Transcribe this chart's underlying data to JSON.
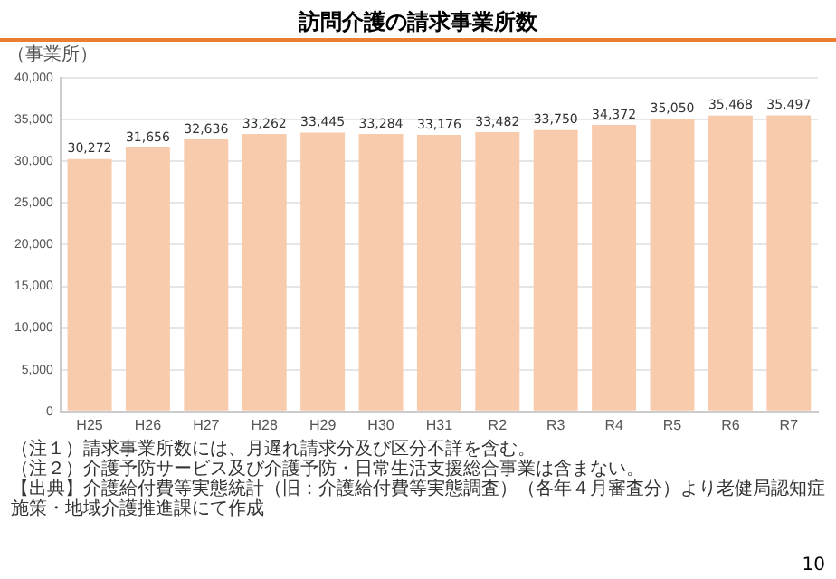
{
  "chart_data": {
    "type": "bar",
    "title": "訪問介護の請求事業所数",
    "ylabel": "（事業所）",
    "categories": [
      "H25",
      "H26",
      "H27",
      "H28",
      "H29",
      "H30",
      "H31",
      "R2",
      "R3",
      "R4",
      "R5",
      "R6",
      "R7"
    ],
    "values": [
      30272,
      31656,
      32636,
      33262,
      33445,
      33284,
      33176,
      33482,
      33750,
      34372,
      35050,
      35468,
      35497
    ],
    "color": "#f8cbad",
    "ylim": [
      0,
      40000
    ],
    "yticks": [
      {
        "value": 0,
        "label": "0"
      },
      {
        "value": 5000,
        "label": "5,000"
      },
      {
        "value": 10000,
        "label": "10,000"
      },
      {
        "value": 15000,
        "label": "15,000"
      },
      {
        "value": 20000,
        "label": "20,000"
      },
      {
        "value": 25000,
        "label": "25,000"
      },
      {
        "value": 30000,
        "label": "30,000"
      },
      {
        "value": 35000,
        "label": "35,000"
      },
      {
        "value": 40000,
        "label": "40,000"
      }
    ],
    "value_labels": [
      "30,272",
      "31,656",
      "32,636",
      "33,262",
      "33,445",
      "33,284",
      "33,176",
      "33,482",
      "33,750",
      "34,372",
      "35,050",
      "35,468",
      "35,497"
    ],
    "grid": "y",
    "annotations": [
      "（注１）請求事業所数には、月遅れ請求分及び区分不詳を含む。",
      "（注２）介護予防サービス及び介護予防・日常生活支援総合事業は含まない。",
      "【出典】介護給付費等実態統計（旧：介護給付費等実態調査）（各年４月審査分）より老健局認知症施策・地域介護推進課にて作成",
      "10"
    ]
  }
}
